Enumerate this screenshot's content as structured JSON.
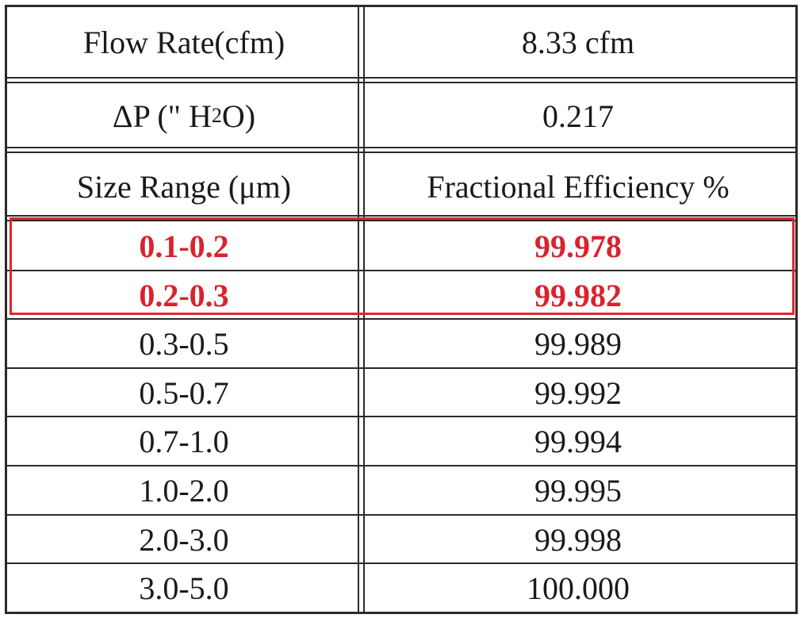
{
  "header_rows": [
    {
      "label": "Flow Rate(cfm)",
      "value": "8.33 cfm"
    },
    {
      "label_prefix": "ΔP (\" H",
      "label_sub": "2",
      "label_suffix": "O)",
      "value": "0.217"
    }
  ],
  "column_headers": {
    "left": "Size Range (μm)",
    "right": "Fractional Efficiency %"
  },
  "rows": [
    {
      "range": "0.1-0.2",
      "efficiency": "99.978",
      "highlighted": true
    },
    {
      "range": "0.2-0.3",
      "efficiency": "99.982",
      "highlighted": true
    },
    {
      "range": "0.3-0.5",
      "efficiency": "99.989",
      "highlighted": false
    },
    {
      "range": "0.5-0.7",
      "efficiency": "99.992",
      "highlighted": false
    },
    {
      "range": "0.7-1.0",
      "efficiency": "99.994",
      "highlighted": false
    },
    {
      "range": "1.0-2.0",
      "efficiency": "99.995",
      "highlighted": false
    },
    {
      "range": "2.0-3.0",
      "efficiency": "99.998",
      "highlighted": false
    },
    {
      "range": "3.0-5.0",
      "efficiency": "100.000",
      "highlighted": false
    }
  ],
  "colors": {
    "highlight_text": "#d9232e",
    "highlight_border": "#e0262f",
    "grid": "#2a2a2a"
  }
}
